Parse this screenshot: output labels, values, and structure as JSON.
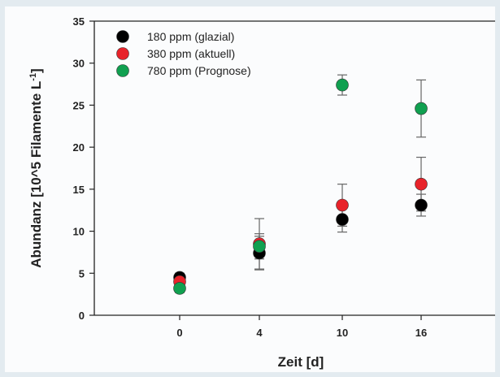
{
  "chart_data": {
    "type": "scatter",
    "title": "",
    "xlabel": "Zeit [d]",
    "ylabel": "Abundanz [10^5 Filamente L",
    "ylabel_sup": "-1",
    "ylabel_close": "]",
    "categories": [
      "0",
      "4",
      "10",
      "16"
    ],
    "ylim": [
      0,
      35
    ],
    "yticks": [
      "0",
      "5",
      "10",
      "15",
      "20",
      "25",
      "30",
      "35"
    ],
    "grid": false,
    "legend_position": "top-left",
    "series": [
      {
        "name": "180 ppm (glazial)",
        "color": "#000000",
        "values": [
          4.5,
          7.4,
          11.4,
          13.1
        ],
        "err": [
          0.5,
          2.0,
          1.5,
          1.3
        ]
      },
      {
        "name": "380 ppm (aktuell)",
        "color": "#e8232a",
        "values": [
          4.0,
          8.5,
          13.1,
          15.6
        ],
        "err": [
          0.5,
          3.0,
          2.5,
          3.2
        ]
      },
      {
        "name": "780 ppm (Prognose)",
        "color": "#10a050",
        "values": [
          3.2,
          8.2,
          27.4,
          24.6
        ],
        "err": [
          0.5,
          1.5,
          1.2,
          3.4
        ]
      }
    ]
  }
}
